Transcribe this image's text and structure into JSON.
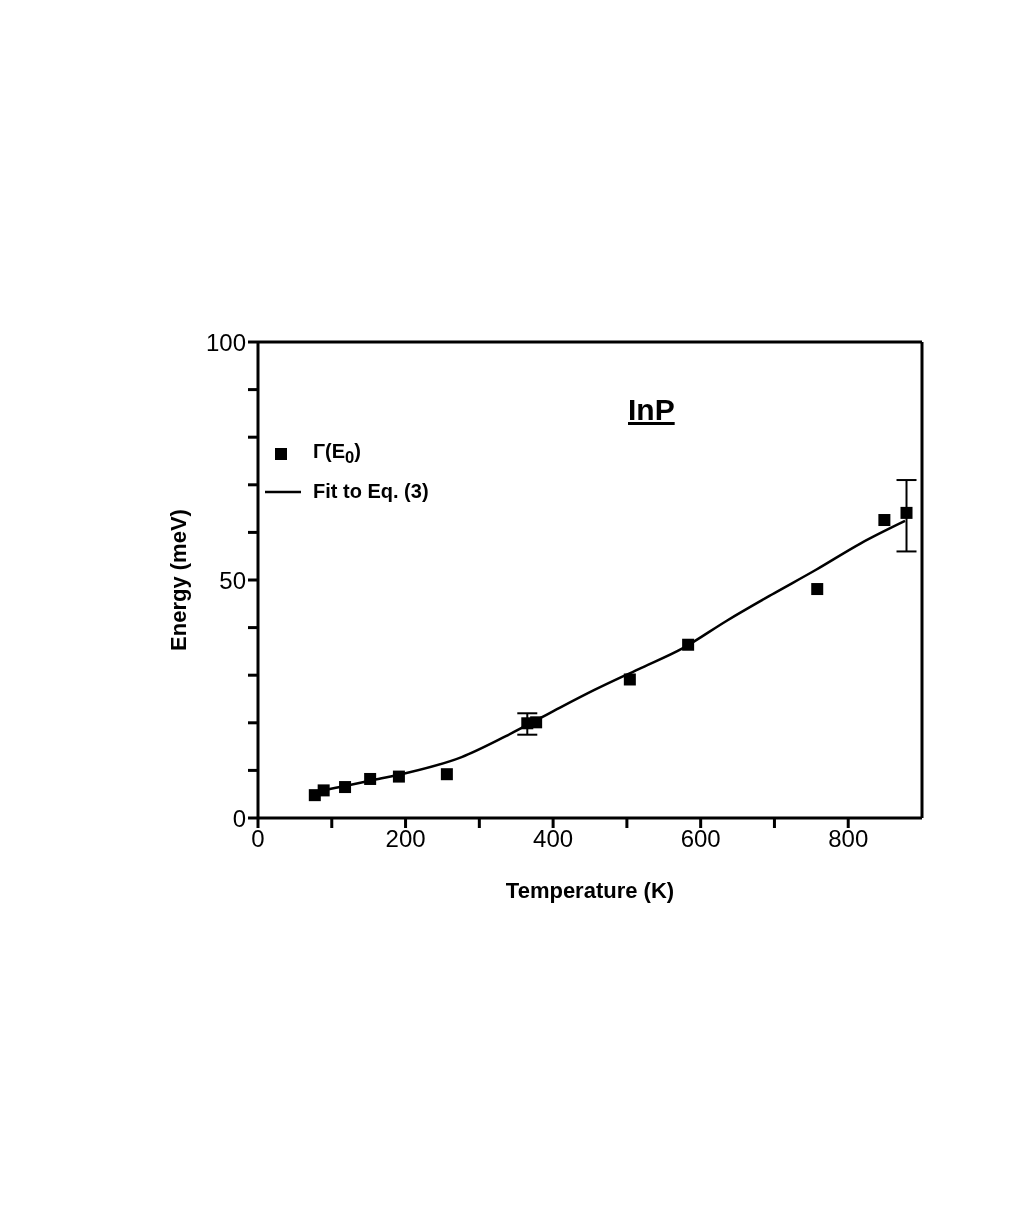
{
  "chart_data": {
    "type": "scatter",
    "xlabel": "Temperature (K)",
    "ylabel": "Energy (meV)",
    "annotations": [
      "InP"
    ],
    "xlim": [
      0,
      900
    ],
    "ylim": [
      0,
      100
    ],
    "xticks": [
      0,
      {
        "value": 100,
        "label": null
      },
      200,
      {
        "value": 300,
        "label": null
      },
      400,
      {
        "value": 500,
        "label": null
      },
      600,
      {
        "value": 700,
        "label": null
      },
      800
    ],
    "yticks": [
      0,
      {
        "value": 10,
        "label": null
      },
      {
        "value": 20,
        "label": null
      },
      {
        "value": 30,
        "label": null
      },
      {
        "value": 40,
        "label": null
      },
      50,
      {
        "value": 60,
        "label": null
      },
      {
        "value": 70,
        "label": null
      },
      {
        "value": 80,
        "label": null
      },
      {
        "value": 90,
        "label": null
      },
      100
    ],
    "legend": "top left",
    "marker": "square",
    "series": [
      {
        "name": "Γ(E$_{0}$)",
        "color": "#000000",
        "x": [
          77,
          89,
          118,
          152,
          191,
          256,
          365,
          377,
          504,
          583,
          758,
          849,
          879
        ],
        "values": [
          4.8,
          5.8,
          6.5,
          8.2,
          8.7,
          9.2,
          19.9,
          20.1,
          29.1,
          36.4,
          48.1,
          62.6,
          64.1
        ],
        "errors": [
          null,
          null,
          null,
          null,
          null,
          null,
          [
            17.5,
            22
          ],
          null,
          null,
          null,
          null,
          null,
          [
            56,
            71
          ]
        ]
      },
      {
        "name": "Fit to Eq. (3)",
        "type": "line",
        "color": "#000000",
        "marker": "none",
        "line_style": "solid",
        "x": [
          77,
          126,
          156,
          200,
          276,
          336,
          396,
          456,
          516,
          576,
          636,
          696,
          757,
          817,
          877
        ],
        "values": [
          5.5,
          7,
          8,
          9.4,
          12.8,
          17.2,
          22.1,
          26.9,
          31.3,
          35.7,
          41.5,
          46.9,
          52.2,
          57.7,
          62.4
        ]
      }
    ]
  }
}
